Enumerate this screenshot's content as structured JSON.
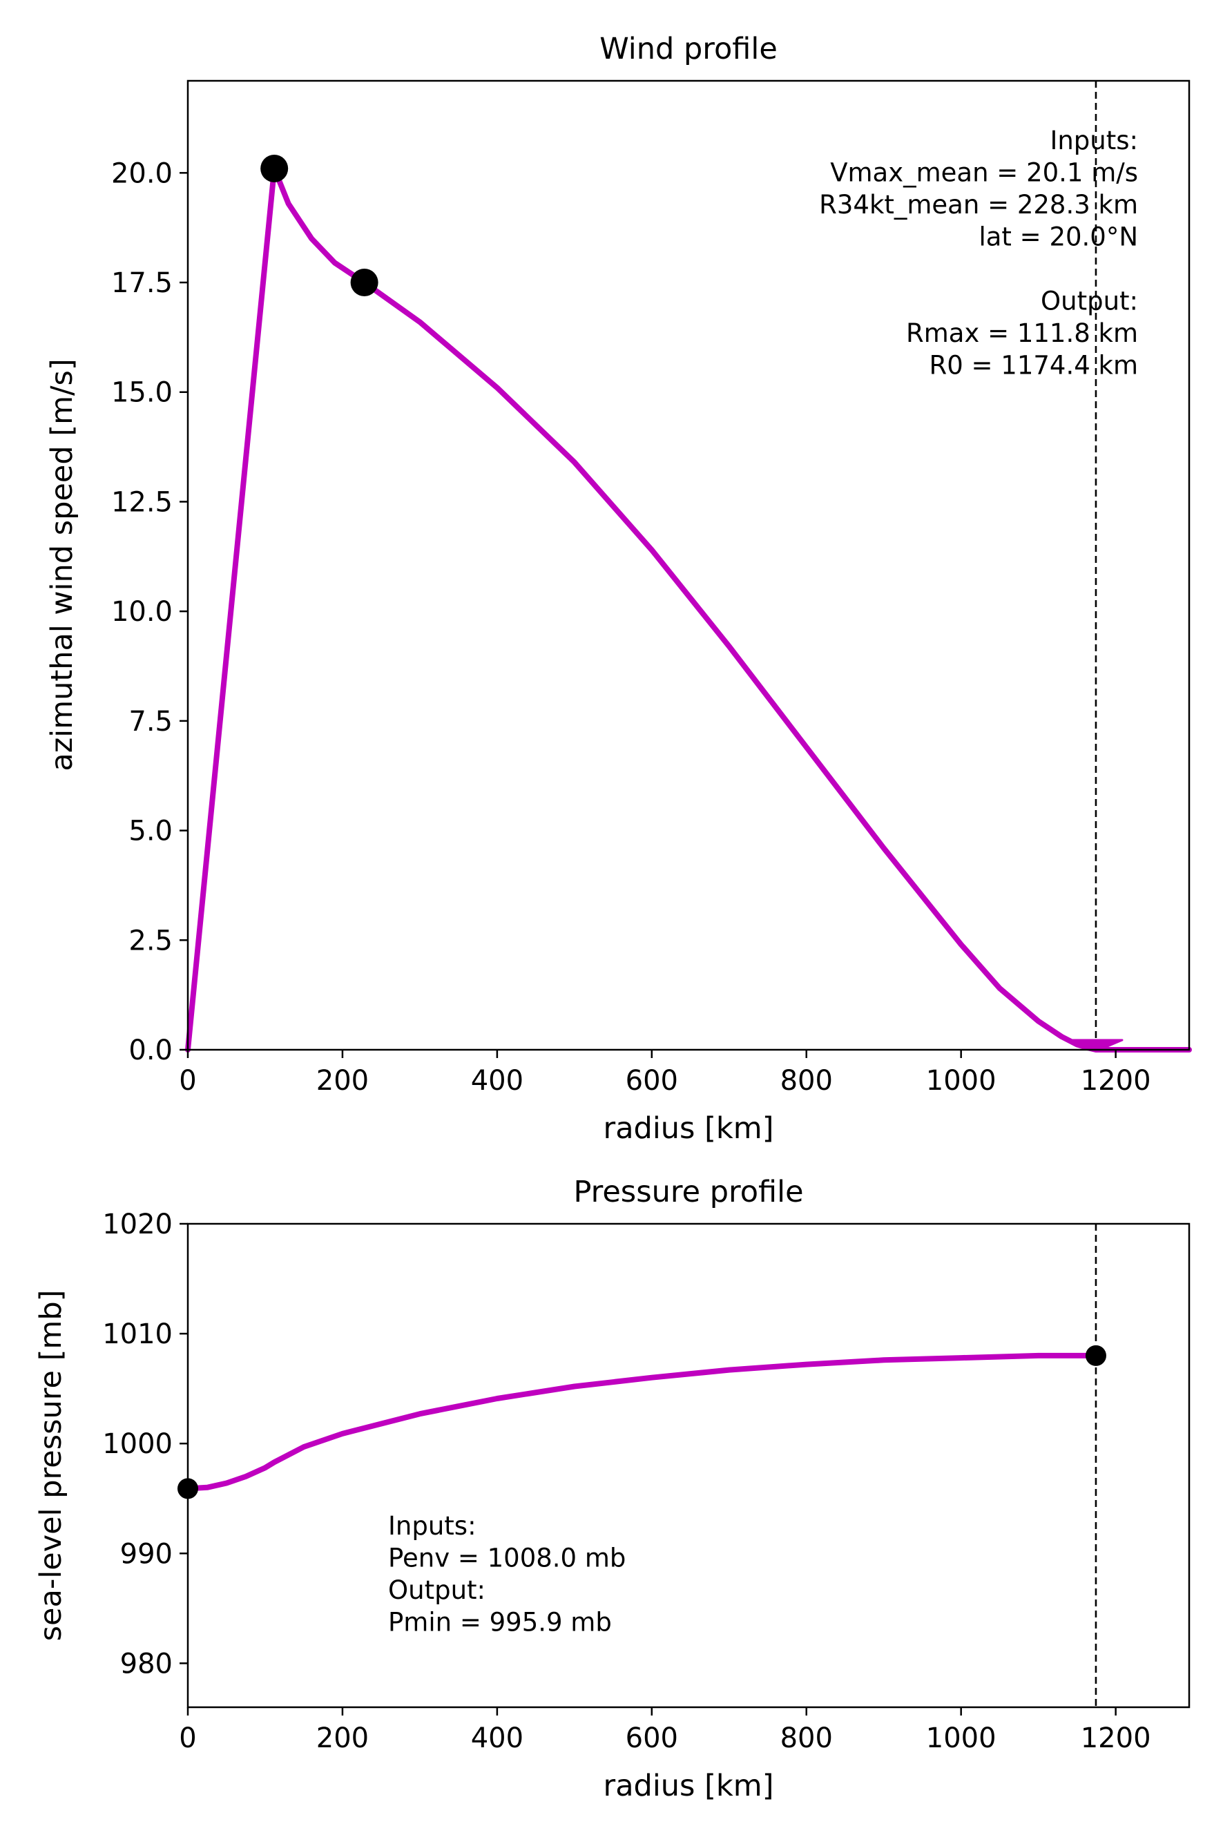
{
  "colors": {
    "profile": "#bf00bf",
    "markers": "#000000",
    "frame": "#000000",
    "background": "#ffffff"
  },
  "chart_data": [
    {
      "id": "wind",
      "type": "line",
      "title": "Wind profile",
      "xlabel": "radius [km]",
      "ylabel": "azimuthal wind speed [m/s]",
      "xlim": [
        0,
        1295
      ],
      "ylim": [
        0,
        22.1
      ],
      "xticks": [
        0,
        200,
        400,
        600,
        800,
        1000,
        1200
      ],
      "xtick_labels": [
        "0",
        "200",
        "400",
        "600",
        "800",
        "1000",
        "1200"
      ],
      "yticks": [
        0,
        2.5,
        5,
        7.5,
        10,
        12.5,
        15,
        17.5,
        20
      ],
      "ytick_labels": [
        "0.0",
        "2.5",
        "5.0",
        "7.5",
        "10.0",
        "12.5",
        "15.0",
        "17.5",
        "20.0"
      ],
      "grid": false,
      "series": [
        {
          "x": [
            0,
            111.8,
            130,
            160,
            190,
            228.3,
            300,
            400,
            500,
            600,
            700,
            800,
            900,
            1000,
            1050,
            1100,
            1130,
            1150,
            1165,
            1174.4,
            1180,
            1295
          ],
          "y": [
            0,
            20.1,
            19.3,
            18.5,
            17.95,
            17.5,
            16.6,
            15.1,
            13.4,
            11.4,
            9.2,
            6.9,
            4.6,
            2.4,
            1.4,
            0.65,
            0.3,
            0.12,
            0.04,
            0.0,
            0.0,
            0.0
          ]
        }
      ],
      "points": [
        {
          "x": 111.8,
          "y": 20.1
        },
        {
          "x": 228.3,
          "y": 17.5
        }
      ],
      "vline_x": 1174.4,
      "annotation": {
        "position": "top-right",
        "lines": [
          "Inputs:",
          "Vmax_mean = 20.1 m/s",
          "R34kt_mean = 228.3 km",
          "lat = 20.0°N",
          "",
          "Output:",
          "Rmax = 111.8 km",
          "R0 = 1174.4 km"
        ]
      }
    },
    {
      "id": "pressure",
      "type": "line",
      "title": "Pressure profile",
      "xlabel": "radius [km]",
      "ylabel": "sea-level pressure [mb]",
      "xlim": [
        0,
        1295
      ],
      "ylim": [
        976,
        1020
      ],
      "xticks": [
        0,
        200,
        400,
        600,
        800,
        1000,
        1200
      ],
      "xtick_labels": [
        "0",
        "200",
        "400",
        "600",
        "800",
        "1000",
        "1200"
      ],
      "yticks": [
        980,
        990,
        1000,
        1010,
        1020
      ],
      "ytick_labels": [
        "980",
        "990",
        "1000",
        "1010",
        "1020"
      ],
      "grid": false,
      "series": [
        {
          "x": [
            0,
            25,
            50,
            75,
            100,
            111.8,
            150,
            200,
            300,
            400,
            500,
            600,
            700,
            800,
            900,
            1000,
            1100,
            1174.4
          ],
          "y": [
            995.9,
            996.0,
            996.4,
            997.0,
            997.8,
            998.3,
            999.7,
            1000.9,
            1002.7,
            1004.1,
            1005.2,
            1006.0,
            1006.7,
            1007.2,
            1007.6,
            1007.8,
            1008.0,
            1008.0
          ]
        }
      ],
      "points": [
        {
          "x": 0,
          "y": 995.9
        },
        {
          "x": 1174.4,
          "y": 1008.0
        }
      ],
      "vline_x": 1174.4,
      "annotation": {
        "position": "lower-left",
        "lines": [
          "Inputs:",
          "Penv = 1008.0 mb",
          "Output:",
          "Pmin = 995.9 mb"
        ]
      }
    }
  ]
}
